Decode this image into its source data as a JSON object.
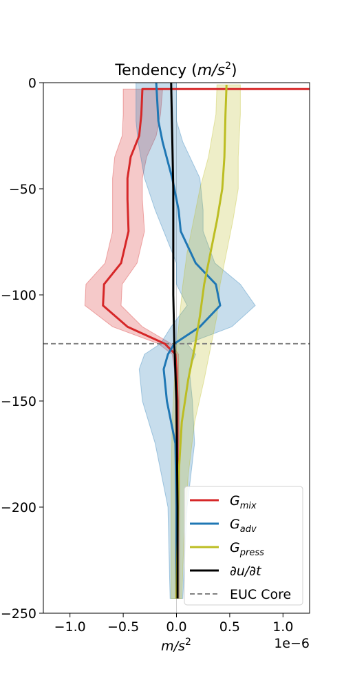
{
  "chart_data": {
    "type": "line",
    "title_main": "Tendency (",
    "title_unit": "m/s",
    "title_exp": "2",
    "title_close": ")",
    "xlabel_unit": "m/s",
    "xlabel_exp": "2",
    "x_offset_text": "1e−6",
    "xlim": [
      -1.25,
      1.25
    ],
    "ylim": [
      -250,
      0
    ],
    "xticks": [
      -1.0,
      -0.5,
      0.0,
      0.5,
      1.0
    ],
    "xtick_labels": [
      "−1.0",
      "−0.5",
      "0.0",
      "0.5",
      "1.0"
    ],
    "yticks": [
      0,
      -50,
      -100,
      -150,
      -200,
      -250
    ],
    "ytick_labels": [
      "0",
      "−50",
      "−100",
      "−150",
      "−200",
      "−250"
    ],
    "euc_core_depth": -123,
    "series": [
      {
        "name_base": "G",
        "name_sub": "mix",
        "color": "#d62728",
        "depth": [
          -3,
          -15,
          -25,
          -35,
          -45,
          -55,
          -70,
          -85,
          -95,
          -105,
          -115,
          -123,
          -128,
          -135,
          -150,
          -170,
          -200,
          -243
        ],
        "mean": [
          -0.32,
          -0.33,
          -0.35,
          -0.43,
          -0.46,
          -0.46,
          -0.45,
          -0.52,
          -0.68,
          -0.69,
          -0.46,
          -0.11,
          -0.01,
          0.0,
          0.01,
          0.01,
          0.01,
          0.01
        ],
        "lower": [
          -0.5,
          -0.5,
          -0.51,
          -0.58,
          -0.6,
          -0.6,
          -0.6,
          -0.67,
          -0.85,
          -0.86,
          -0.6,
          -0.17,
          -0.04,
          -0.02,
          -0.01,
          -0.01,
          -0.01,
          -0.01
        ],
        "upper": [
          -0.13,
          -0.15,
          -0.19,
          -0.28,
          -0.32,
          -0.32,
          -0.3,
          -0.37,
          -0.51,
          -0.52,
          -0.32,
          -0.05,
          0.02,
          0.02,
          0.03,
          0.03,
          0.03,
          0.03
        ],
        "top_spike_x": 1.25
      },
      {
        "name_base": "G",
        "name_sub": "adv",
        "color": "#1f77b4",
        "depth": [
          0,
          -18,
          -28,
          -45,
          -60,
          -70,
          -85,
          -95,
          -105,
          -115,
          -123,
          -128,
          -135,
          -150,
          -170,
          -200,
          -243
        ],
        "mean": [
          -0.19,
          -0.17,
          -0.13,
          -0.04,
          0.02,
          0.04,
          0.18,
          0.37,
          0.41,
          0.22,
          -0.02,
          -0.08,
          -0.12,
          -0.09,
          -0.01,
          0.0,
          0.0
        ],
        "lower": [
          -0.38,
          -0.38,
          -0.36,
          -0.3,
          -0.2,
          -0.12,
          0.0,
          0.0,
          0.1,
          -0.05,
          -0.15,
          -0.3,
          -0.35,
          -0.32,
          -0.2,
          -0.08,
          -0.06
        ],
        "upper": [
          0.0,
          0.0,
          0.06,
          0.22,
          0.25,
          0.25,
          0.36,
          0.6,
          0.74,
          0.52,
          0.1,
          0.18,
          0.12,
          0.15,
          0.17,
          0.1,
          0.06
        ]
      },
      {
        "name_base": "G",
        "name_sub": "press",
        "color": "#bcbd22",
        "depth": [
          -1,
          -15,
          -35,
          -50,
          -65,
          -80,
          -95,
          -110,
          -125,
          -140,
          -160,
          -185,
          -215,
          -243
        ],
        "mean": [
          0.47,
          0.46,
          0.45,
          0.43,
          0.38,
          0.32,
          0.26,
          0.22,
          0.17,
          0.11,
          0.05,
          0.02,
          0.01,
          0.0
        ],
        "lower": [
          0.38,
          0.37,
          0.3,
          0.22,
          0.16,
          0.1,
          0.06,
          0.03,
          0.0,
          -0.02,
          -0.04,
          -0.05,
          -0.05,
          -0.05
        ],
        "upper": [
          0.6,
          0.6,
          0.58,
          0.58,
          0.53,
          0.47,
          0.41,
          0.38,
          0.32,
          0.26,
          0.17,
          0.11,
          0.07,
          0.05
        ]
      },
      {
        "name_base": "∂u/∂t",
        "name_sub": "",
        "color": "#000000",
        "depth": [
          0,
          -50,
          -100,
          -123,
          -150,
          -200,
          -243
        ],
        "mean": [
          -0.05,
          -0.03,
          -0.03,
          -0.02,
          0.0,
          0.01,
          0.01
        ]
      },
      {
        "name_base": "EUC Core",
        "name_sub": "",
        "color": "#808080",
        "dashed": true
      }
    ]
  }
}
